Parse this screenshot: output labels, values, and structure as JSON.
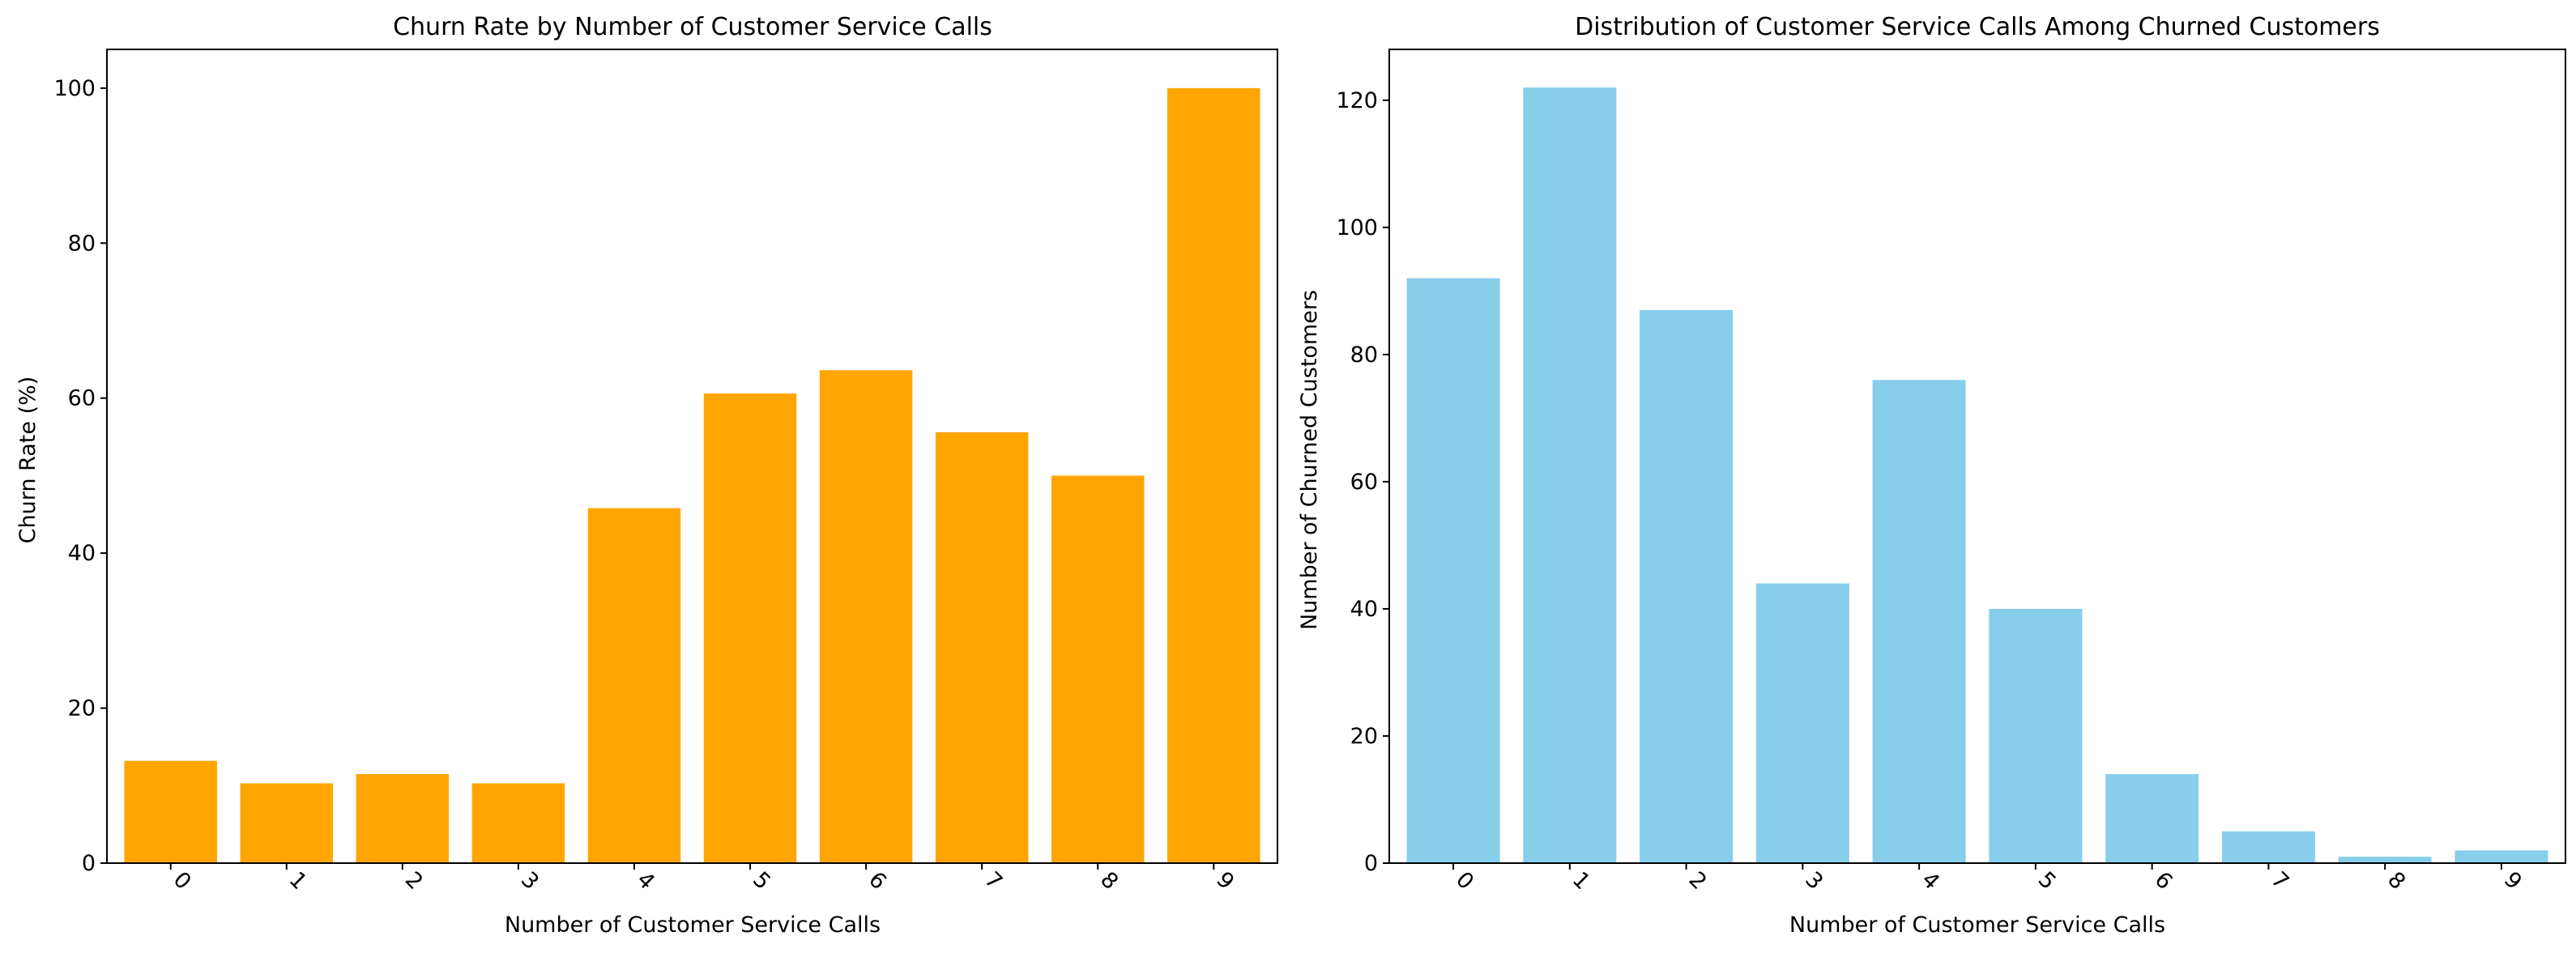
{
  "chart_data": [
    {
      "type": "bar",
      "title": "Churn Rate by Number of Customer Service Calls",
      "xlabel": "Number of Customer Service Calls",
      "ylabel": "Churn Rate (%)",
      "categories": [
        "0",
        "1",
        "2",
        "3",
        "4",
        "5",
        "6",
        "7",
        "8",
        "9"
      ],
      "values": [
        13.2,
        10.3,
        11.5,
        10.3,
        45.8,
        60.6,
        63.6,
        55.6,
        50.0,
        100.0
      ],
      "ylim": [
        0,
        105
      ],
      "yticks": [
        0,
        20,
        40,
        60,
        80,
        100
      ],
      "color": "#ffa500",
      "grid": false,
      "xtick_rotation": 45
    },
    {
      "type": "bar",
      "title": "Distribution of Customer Service Calls Among Churned Customers",
      "xlabel": "Number of Customer Service Calls",
      "ylabel": "Number of Churned Customers",
      "categories": [
        "0",
        "1",
        "2",
        "3",
        "4",
        "5",
        "6",
        "7",
        "8",
        "9"
      ],
      "values": [
        92,
        122,
        87,
        44,
        76,
        40,
        14,
        5,
        1,
        2
      ],
      "ylim": [
        0,
        128
      ],
      "yticks": [
        0,
        20,
        40,
        60,
        80,
        100,
        120
      ],
      "color": "#87ceeb",
      "grid": false,
      "xtick_rotation": 45
    }
  ]
}
